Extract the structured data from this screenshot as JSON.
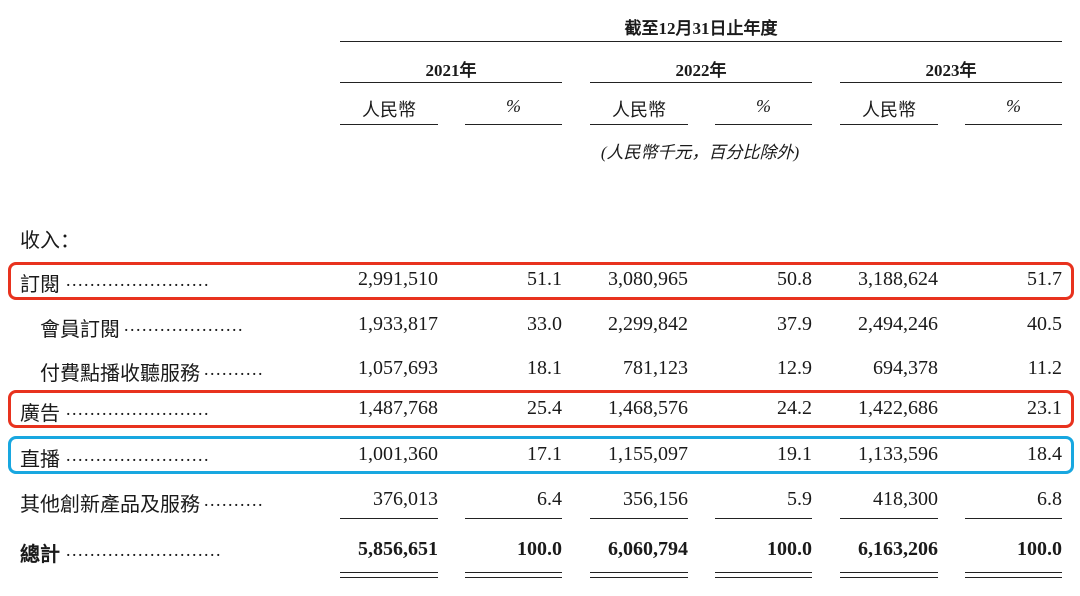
{
  "header": {
    "period_title": "截至12月31日止年度",
    "years": [
      "2021年",
      "2022年",
      "2023年"
    ],
    "currency_label": "人民幣",
    "percent_label": "%",
    "unit_note": "(人民幣千元，百分比除外)"
  },
  "section_title": "收入：",
  "rows": [
    {
      "label": "訂閱",
      "leader": "........................",
      "v2021": "2,991,510",
      "p2021": "51.1",
      "v2022": "3,080,965",
      "p2022": "50.8",
      "v2023": "3,188,624",
      "p2023": "51.7"
    },
    {
      "label": "會員訂閱",
      "leader": "....................",
      "v2021": "1,933,817",
      "p2021": "33.0",
      "v2022": "2,299,842",
      "p2022": "37.9",
      "v2023": "2,494,246",
      "p2023": "40.5"
    },
    {
      "label": "付費點播收聽服務",
      "leader": "..........",
      "v2021": "1,057,693",
      "p2021": "18.1",
      "v2022": "781,123",
      "p2022": "12.9",
      "v2023": "694,378",
      "p2023": "11.2"
    },
    {
      "label": "廣告",
      "leader": "........................",
      "v2021": "1,487,768",
      "p2021": "25.4",
      "v2022": "1,468,576",
      "p2022": "24.2",
      "v2023": "1,422,686",
      "p2023": "23.1"
    },
    {
      "label": "直播",
      "leader": "........................",
      "v2021": "1,001,360",
      "p2021": "17.1",
      "v2022": "1,155,097",
      "p2022": "19.1",
      "v2023": "1,133,596",
      "p2023": "18.4"
    },
    {
      "label": "其他創新產品及服務",
      "leader": "..........",
      "v2021": "376,013",
      "p2021": "6.4",
      "v2022": "356,156",
      "p2022": "5.9",
      "v2023": "418,300",
      "p2023": "6.8"
    }
  ],
  "total": {
    "label": "總計",
    "leader": "..........................",
    "v2021": "5,856,651",
    "p2021": "100.0",
    "v2022": "6,060,794",
    "p2022": "100.0",
    "v2023": "6,163,206",
    "p2023": "100.0"
  },
  "highlights": {
    "red": "#e8321e",
    "blue": "#18a7e0"
  }
}
